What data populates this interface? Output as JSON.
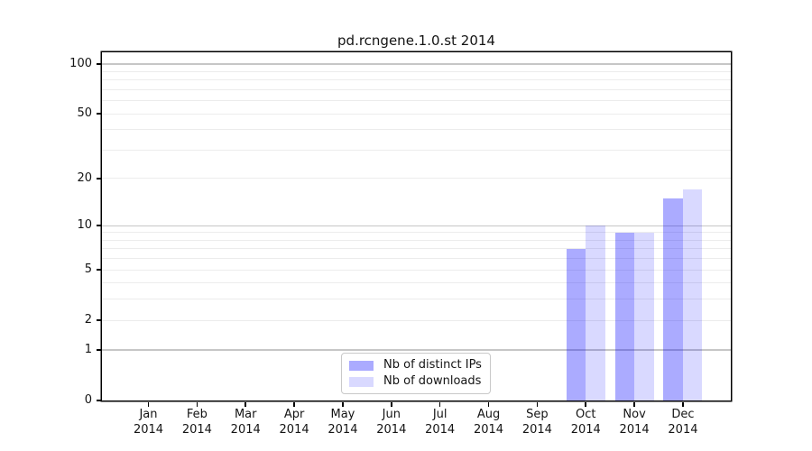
{
  "chart_data": {
    "type": "bar",
    "title": "pd.rcngene.1.0.st 2014",
    "categories": [
      "Jan",
      "Feb",
      "Mar",
      "Apr",
      "May",
      "Jun",
      "Jul",
      "Aug",
      "Sep",
      "Oct",
      "Nov",
      "Dec"
    ],
    "category_year": "2014",
    "series": [
      {
        "name": "Nb of distinct IPs",
        "color": "#0000ff",
        "alpha": 0.33,
        "values": [
          0,
          0,
          0,
          0,
          0,
          0,
          0,
          0,
          0,
          7,
          9,
          15
        ]
      },
      {
        "name": "Nb of downloads",
        "color": "#0000ff",
        "alpha": 0.15,
        "values": [
          0,
          0,
          0,
          0,
          0,
          0,
          0,
          0,
          0,
          10,
          9,
          17
        ]
      }
    ],
    "y_axis": {
      "scale": "log1p",
      "max": 100,
      "ticks": [
        0,
        1,
        2,
        5,
        10,
        20,
        50,
        100
      ],
      "major_gridlines": [
        1,
        10,
        100
      ],
      "minor_gridlines": [
        2,
        3,
        4,
        5,
        6,
        7,
        8,
        9,
        20,
        30,
        40,
        50,
        60,
        70,
        80,
        90
      ]
    },
    "grid": {
      "major_color": "#c6c6c6",
      "minor_color": "#ececec"
    },
    "legend_position": "lower center",
    "axis_color": "#000000",
    "background_color": "#ffffff"
  }
}
